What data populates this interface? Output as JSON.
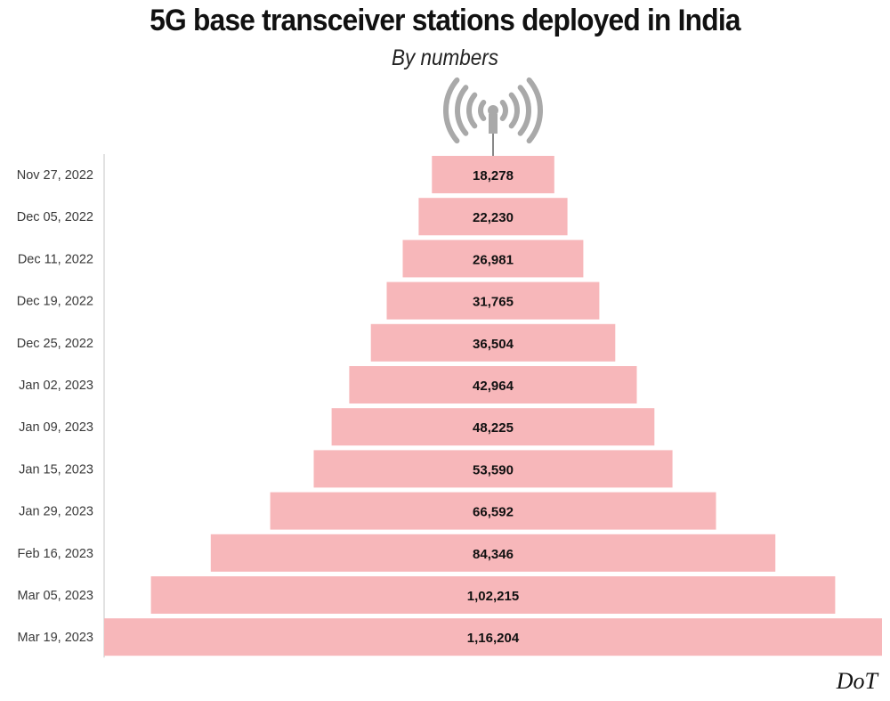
{
  "title": "5G base transceiver stations deployed in India",
  "subtitle": "By numbers",
  "source": "DoT",
  "colors": {
    "bar": "#f7b7ba",
    "axis": "#d9d9d9",
    "tower": "#a9a9a9"
  },
  "icons": [
    "signal-tower-icon"
  ],
  "chart_data": {
    "type": "bar",
    "orientation": "horizontal-centered",
    "title": "5G base transceiver stations deployed in India",
    "subtitle": "By numbers",
    "categories": [
      "Nov 27, 2022",
      "Dec 05, 2022",
      "Dec 11, 2022",
      "Dec 19, 2022",
      "Dec 25, 2022",
      "Jan 02, 2023",
      "Jan 09, 2023",
      "Jan 15, 2023",
      "Jan 29, 2023",
      "Feb 16, 2023",
      "Mar 05, 2023",
      "Mar 19, 2023"
    ],
    "values": [
      18278,
      22230,
      26981,
      31765,
      36504,
      42964,
      48225,
      53590,
      66592,
      84346,
      102215,
      116204
    ],
    "data_labels": [
      "18,278",
      "22,230",
      "26,981",
      "31,765",
      "36,504",
      "42,964",
      "48,225",
      "53,590",
      "66,592",
      "84,346",
      "1,02,215",
      "1,16,204"
    ],
    "xlim": [
      0,
      116204
    ],
    "grid": false,
    "legend": "none"
  }
}
